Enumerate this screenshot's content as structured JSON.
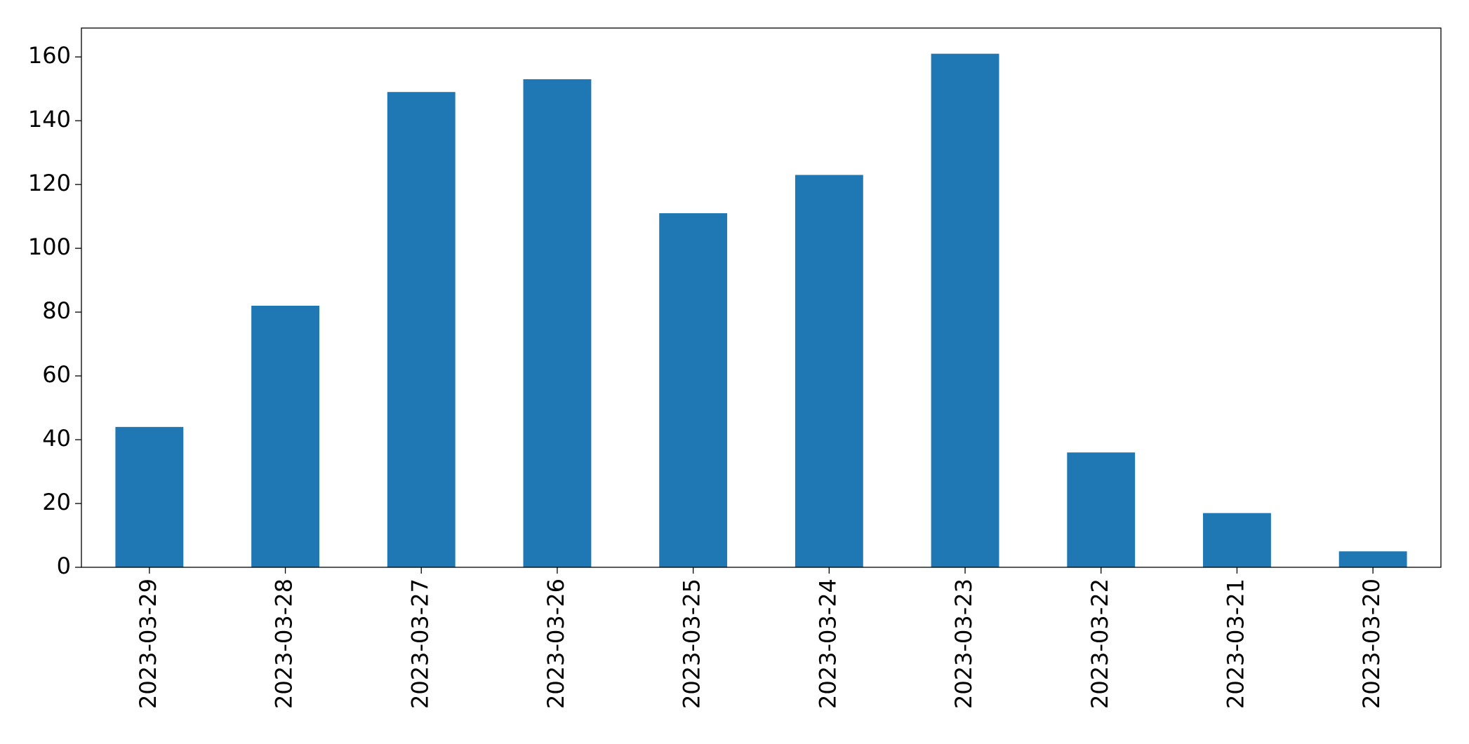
{
  "chart_data": {
    "type": "bar",
    "categories": [
      "2023-03-29",
      "2023-03-28",
      "2023-03-27",
      "2023-03-26",
      "2023-03-25",
      "2023-03-24",
      "2023-03-23",
      "2023-03-22",
      "2023-03-21",
      "2023-03-20"
    ],
    "values": [
      44,
      82,
      149,
      153,
      111,
      123,
      161,
      36,
      17,
      5
    ],
    "color": "#1f77b4",
    "ylim": [
      0,
      169.05
    ],
    "yticks": [
      0,
      20,
      40,
      60,
      80,
      100,
      120,
      140,
      160
    ],
    "grid": false
  }
}
